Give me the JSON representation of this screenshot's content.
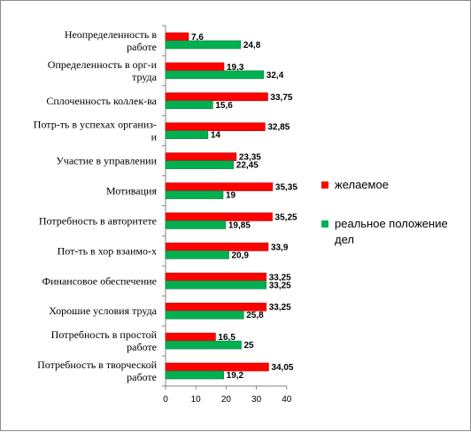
{
  "chart_data": {
    "type": "bar",
    "orientation": "horizontal",
    "categories": [
      [
        "Неопределенность в",
        "работе"
      ],
      [
        "Определенность в орг-и",
        "труда"
      ],
      [
        "Сплоченность коллек-ва"
      ],
      [
        "Потр-ть в успехах организ-",
        "и"
      ],
      [
        "Участие в управлении"
      ],
      [
        "Мотивация"
      ],
      [
        "Потребность в авторитете"
      ],
      [
        "Пот-ть в хор взаимо-х"
      ],
      [
        "Финансовое обеспечение"
      ],
      [
        "Хорошие условия труда"
      ],
      [
        "Потребность в простой",
        "работе"
      ],
      [
        "Потребность в творческой",
        "работе"
      ]
    ],
    "series": [
      {
        "name": "желаемое",
        "color": "#ff0000",
        "values": [
          7.6,
          19.3,
          33.75,
          32.85,
          23.35,
          35.35,
          35.25,
          33.9,
          33.25,
          33.25,
          16.5,
          34.05
        ],
        "labels": [
          "7,6",
          "19,3",
          "33,75",
          "32,85",
          "23,35",
          "35,35",
          "35,25",
          "33,9",
          "33,25",
          "33,25",
          "16,5",
          "34,05"
        ]
      },
      {
        "name": "реальное положение дел",
        "color": "#00b050",
        "values": [
          24.8,
          32.4,
          15.6,
          14,
          22.45,
          19,
          19.85,
          20.9,
          33.25,
          25.8,
          25,
          19.2
        ],
        "labels": [
          "24,8",
          "32,4",
          "15,6",
          "14",
          "22,45",
          "19",
          "19,85",
          "20,9",
          "33,25",
          "25,8",
          "25",
          "19,2"
        ]
      }
    ],
    "legend": {
      "placement": "right",
      "entries": [
        [
          "желаемое"
        ],
        [
          "реальное положение",
          "дел"
        ]
      ]
    },
    "xlim": [
      0,
      40
    ],
    "xticks": [
      "0",
      "10",
      "20",
      "30",
      "40"
    ],
    "grid": false
  }
}
